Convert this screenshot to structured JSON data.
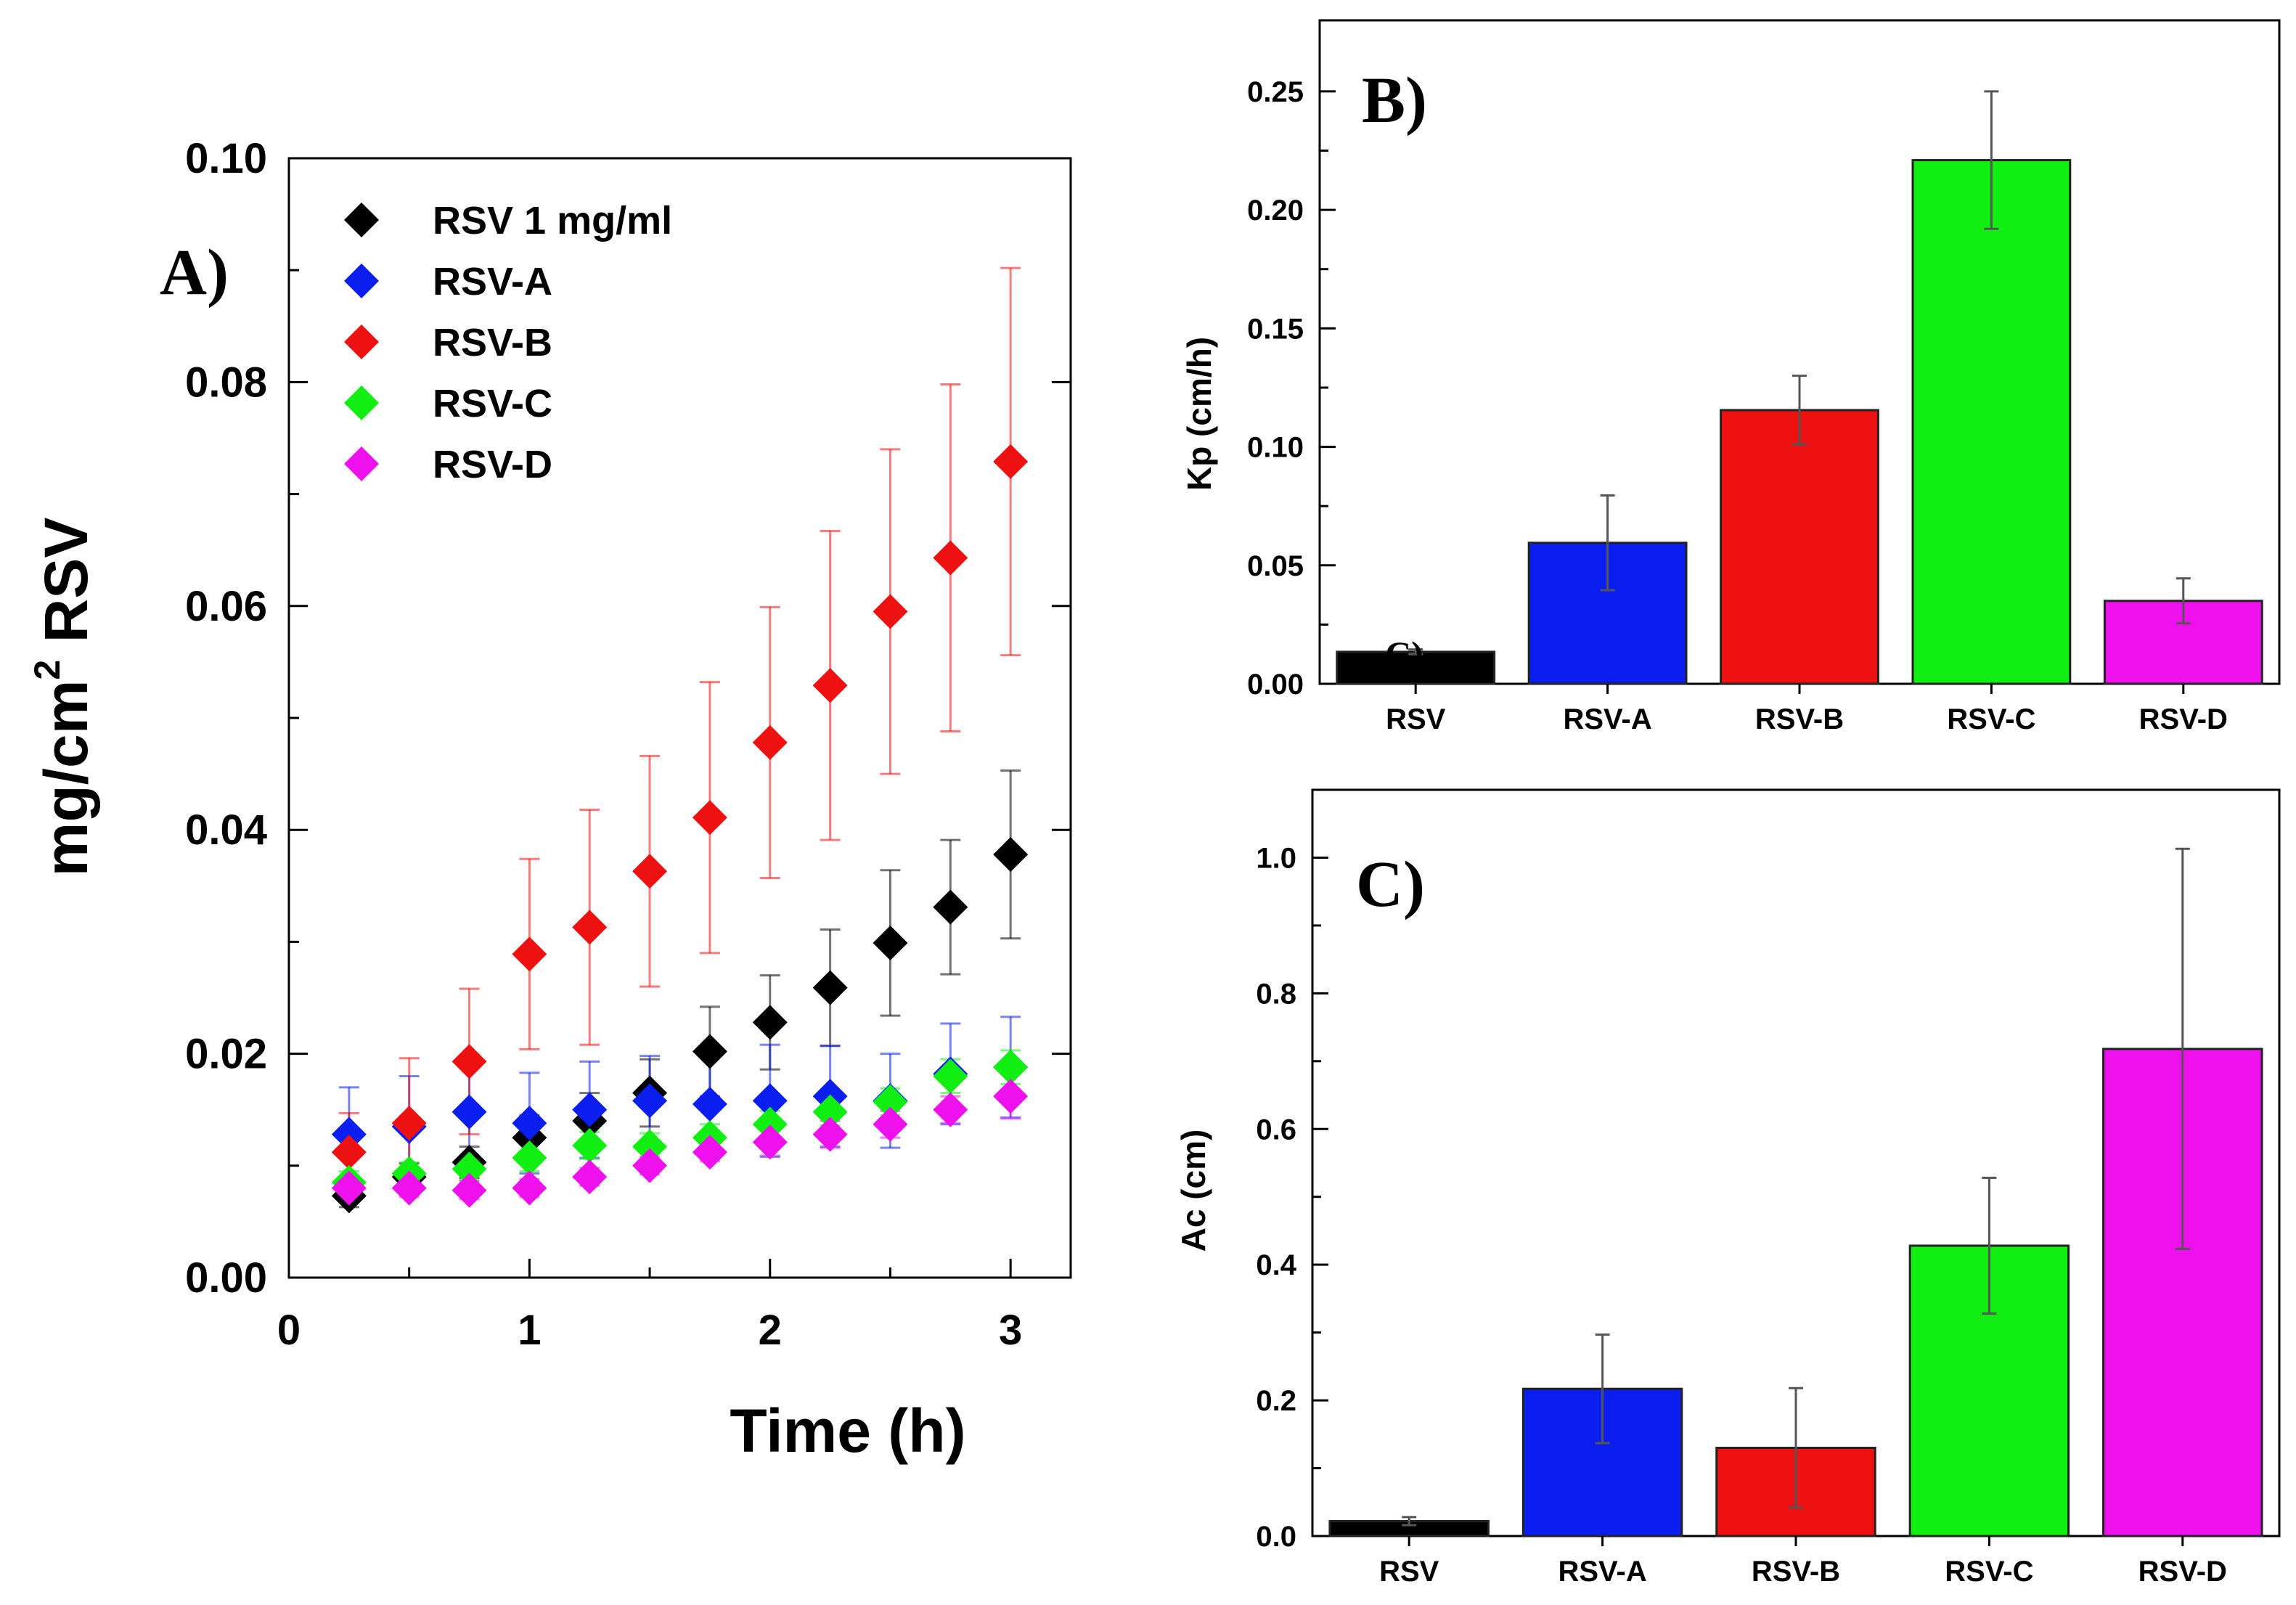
{
  "chart_data": [
    {
      "id": "A",
      "panel_label": "A)",
      "type": "scatter",
      "xlabel": "Time (h)",
      "ylabel": "mg/cm",
      "ylabel_sup": "2",
      "ylabel_tail": " RSV",
      "xlim": [
        0,
        3.25
      ],
      "ylim": [
        0,
        0.1
      ],
      "xticks": [
        0,
        1,
        2,
        3
      ],
      "xtick_labels": [
        "0",
        "1",
        "2",
        "3"
      ],
      "yticks": [
        0,
        0.02,
        0.04,
        0.06,
        0.08,
        0.1
      ],
      "ytick_labels": [
        "0.00",
        "0.02",
        "0.04",
        "0.06",
        "0.08",
        "0.10"
      ],
      "legend_position": "top-left",
      "x": [
        0.25,
        0.5,
        0.75,
        1.0,
        1.25,
        1.5,
        1.75,
        2.0,
        2.25,
        2.5,
        2.75,
        3.0
      ],
      "series": [
        {
          "name": "RSV 1 mg/ml",
          "color": "#000000",
          "values": [
            0.0073,
            0.009,
            0.0103,
            0.0125,
            0.014,
            0.0165,
            0.0202,
            0.0228,
            0.0259,
            0.0299,
            0.0331,
            0.0378
          ],
          "errors": [
            0.001,
            0.0012,
            0.0014,
            0.002,
            0.0025,
            0.003,
            0.004,
            0.0042,
            0.0052,
            0.0065,
            0.006,
            0.0075
          ]
        },
        {
          "name": "RSV-A",
          "color": "#0a1ef0",
          "values": [
            0.0128,
            0.0135,
            0.0148,
            0.0138,
            0.015,
            0.0158,
            0.0155,
            0.0158,
            0.0162,
            0.0158,
            0.0182,
            0.0188
          ],
          "errors": [
            0.0042,
            0.0045,
            0.004,
            0.0045,
            0.0043,
            0.004,
            0.0042,
            0.005,
            0.0045,
            0.0042,
            0.0045,
            0.0045
          ]
        },
        {
          "name": "RSV-B",
          "color": "#ee1111",
          "values": [
            0.0112,
            0.0138,
            0.0193,
            0.0289,
            0.0313,
            0.0363,
            0.0411,
            0.0478,
            0.0529,
            0.0595,
            0.0643,
            0.0729
          ],
          "errors": [
            0.0035,
            0.0058,
            0.0065,
            0.0085,
            0.0105,
            0.0103,
            0.0121,
            0.0121,
            0.0138,
            0.0145,
            0.0155,
            0.0173
          ]
        },
        {
          "name": "RSV-C",
          "color": "#11ee11",
          "values": [
            0.0085,
            0.0093,
            0.0097,
            0.0107,
            0.0118,
            0.0117,
            0.0125,
            0.0137,
            0.0148,
            0.0157,
            0.018,
            0.0188
          ],
          "errors": [
            0.001,
            0.001,
            0.001,
            0.0012,
            0.0012,
            0.0012,
            0.0012,
            0.0012,
            0.0012,
            0.0012,
            0.0015,
            0.0015
          ]
        },
        {
          "name": "RSV-D",
          "color": "#ee11ee",
          "values": [
            0.008,
            0.008,
            0.0078,
            0.008,
            0.009,
            0.01,
            0.0112,
            0.0121,
            0.0128,
            0.0137,
            0.015,
            0.0162
          ],
          "errors": [
            0.0008,
            0.0008,
            0.0008,
            0.0008,
            0.0008,
            0.0008,
            0.0008,
            0.0012,
            0.0012,
            0.0012,
            0.0012,
            0.002
          ]
        }
      ]
    },
    {
      "id": "B",
      "panel_label": "B)",
      "type": "bar",
      "ylabel": "Kp (cm/h)",
      "ylim": [
        0,
        0.28
      ],
      "yticks": [
        0,
        0.05,
        0.1,
        0.15,
        0.2,
        0.25
      ],
      "ytick_labels": [
        "0.00",
        "0.05",
        "0.10",
        "0.15",
        "0.20",
        "0.25"
      ],
      "categories": [
        "RSV",
        "RSV-A",
        "RSV-B",
        "RSV-C",
        "RSV-D"
      ],
      "values": [
        0.0135,
        0.0595,
        0.1155,
        0.221,
        0.035
      ],
      "errors": [
        0.001,
        0.02,
        0.0145,
        0.029,
        0.0095
      ],
      "colors": [
        "#000000",
        "#0a1ef0",
        "#ee1111",
        "#11ee11",
        "#ee11ee"
      ],
      "overlap_text": "C)"
    },
    {
      "id": "C",
      "panel_label": "C)",
      "type": "bar",
      "ylabel": "Ac (cm)",
      "ylim": [
        0,
        1.1
      ],
      "yticks": [
        0,
        0.2,
        0.4,
        0.6,
        0.8,
        1.0
      ],
      "ytick_labels": [
        "0.0",
        "0.2",
        "0.4",
        "0.6",
        "0.8",
        "1.0"
      ],
      "categories": [
        "RSV",
        "RSV-A",
        "RSV-B",
        "RSV-C",
        "RSV-D"
      ],
      "values": [
        0.022,
        0.217,
        0.13,
        0.428,
        0.718
      ],
      "errors": [
        0.006,
        0.08,
        0.088,
        0.1,
        0.295
      ],
      "colors": [
        "#000000",
        "#0a1ef0",
        "#ee1111",
        "#11ee11",
        "#ee11ee"
      ]
    }
  ]
}
